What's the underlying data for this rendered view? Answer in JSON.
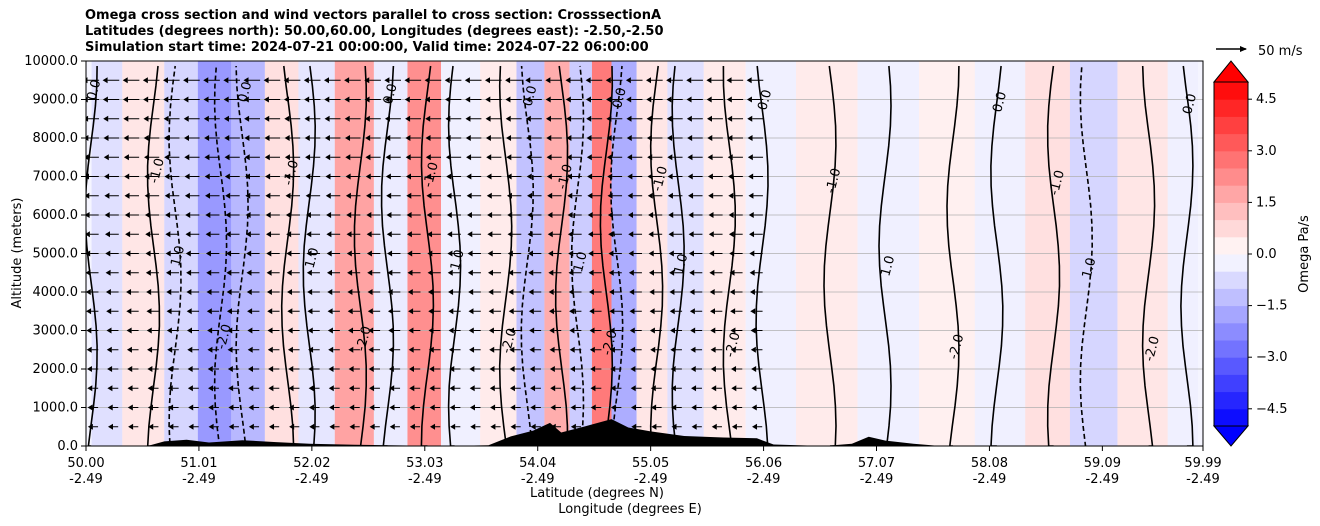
{
  "chart_data": {
    "type": "heatmap",
    "title_lines": [
      "Omega cross section and wind vectors parallel to cross section: CrosssectionA",
      "Latitudes (degrees north): 50.00,60.00, Longitudes (degrees east): -2.50,-2.50",
      "Simulation start time: 2024-07-21 00:00:00, Valid time: 2024-07-22 06:00:00"
    ],
    "xlabel_lat": "Latitude (degrees N)",
    "xlabel_lon": "Longitude (degrees E)",
    "ylabel": "Altitude (meters)",
    "x_ticks": [
      {
        "lat": "50.00",
        "lon": "-2.49",
        "value": 50.0
      },
      {
        "lat": "51.01",
        "lon": "-2.49",
        "value": 51.01
      },
      {
        "lat": "52.02",
        "lon": "-2.49",
        "value": 52.02
      },
      {
        "lat": "53.03",
        "lon": "-2.49",
        "value": 53.03
      },
      {
        "lat": "54.04",
        "lon": "-2.49",
        "value": 54.04
      },
      {
        "lat": "55.05",
        "lon": "-2.49",
        "value": 55.05
      },
      {
        "lat": "56.06",
        "lon": "-2.49",
        "value": 56.06
      },
      {
        "lat": "57.07",
        "lon": "-2.49",
        "value": 57.07
      },
      {
        "lat": "58.08",
        "lon": "-2.49",
        "value": 58.08
      },
      {
        "lat": "59.09",
        "lon": "-2.49",
        "value": 59.09
      },
      {
        "lat": "59.99",
        "lon": "-2.49",
        "value": 59.99
      }
    ],
    "xlim": [
      50.0,
      59.99
    ],
    "y_ticks": [
      "0.0",
      "1000.0",
      "2000.0",
      "3000.0",
      "4000.0",
      "5000.0",
      "6000.0",
      "7000.0",
      "8000.0",
      "9000.0",
      "10000.0"
    ],
    "ylim": [
      0,
      10000
    ],
    "grid": "horizontal",
    "colorbar": {
      "label": "Omega Pa/s",
      "ticks": [
        "4.5",
        "3.0",
        "1.5",
        "0.0",
        "−1.5",
        "−3.0",
        "−4.5"
      ],
      "tick_values": [
        4.5,
        3.0,
        1.5,
        0.0,
        -1.5,
        -3.0,
        -4.5
      ],
      "range": [
        -5.0,
        5.0
      ],
      "extend": "both",
      "levels": 20,
      "low_color": "#0000ff",
      "high_color": "#ff0000",
      "mid_color": "#ffffff"
    },
    "quiver_key": {
      "label": "50 m/s"
    },
    "contour_labels": [
      "0.0",
      "-1.0",
      "1.0",
      "-2.0"
    ],
    "omega_bands": [
      {
        "lat": 50.1,
        "omega": -0.6
      },
      {
        "lat": 50.55,
        "omega": 0.5
      },
      {
        "lat": 50.85,
        "omega": -0.8
      },
      {
        "lat": 51.15,
        "omega": -2.0
      },
      {
        "lat": 51.45,
        "omega": -1.4
      },
      {
        "lat": 51.75,
        "omega": 0.6
      },
      {
        "lat": 52.05,
        "omega": -0.5
      },
      {
        "lat": 52.4,
        "omega": 1.8
      },
      {
        "lat": 52.75,
        "omega": -0.4
      },
      {
        "lat": 53.0,
        "omega": 2.2
      },
      {
        "lat": 53.35,
        "omega": -0.3
      },
      {
        "lat": 53.7,
        "omega": 0.4
      },
      {
        "lat": 54.0,
        "omega": -1.2
      },
      {
        "lat": 54.2,
        "omega": 1.6
      },
      {
        "lat": 54.45,
        "omega": -1.0
      },
      {
        "lat": 54.6,
        "omega": 2.6
      },
      {
        "lat": 54.8,
        "omega": -1.6
      },
      {
        "lat": 55.05,
        "omega": 0.5
      },
      {
        "lat": 55.35,
        "omega": -0.6
      },
      {
        "lat": 55.7,
        "omega": 0.4
      },
      {
        "lat": 56.1,
        "omega": -0.3
      },
      {
        "lat": 56.6,
        "omega": 0.4
      },
      {
        "lat": 57.2,
        "omega": -0.3
      },
      {
        "lat": 57.7,
        "omega": 0.3
      },
      {
        "lat": 58.2,
        "omega": -0.3
      },
      {
        "lat": 58.6,
        "omega": 0.6
      },
      {
        "lat": 59.0,
        "omega": -0.8
      },
      {
        "lat": 59.45,
        "omega": 0.5
      },
      {
        "lat": 59.9,
        "omega": -0.3
      }
    ],
    "terrain": [
      {
        "lat": 50.0,
        "alt": 0
      },
      {
        "lat": 50.55,
        "alt": 0
      },
      {
        "lat": 50.7,
        "alt": 120
      },
      {
        "lat": 50.9,
        "alt": 160
      },
      {
        "lat": 51.1,
        "alt": 90
      },
      {
        "lat": 51.4,
        "alt": 150
      },
      {
        "lat": 51.7,
        "alt": 100
      },
      {
        "lat": 52.0,
        "alt": 60
      },
      {
        "lat": 52.4,
        "alt": 30
      },
      {
        "lat": 53.2,
        "alt": 0
      },
      {
        "lat": 53.6,
        "alt": 20
      },
      {
        "lat": 53.8,
        "alt": 250
      },
      {
        "lat": 54.0,
        "alt": 400
      },
      {
        "lat": 54.15,
        "alt": 600
      },
      {
        "lat": 54.25,
        "alt": 350
      },
      {
        "lat": 54.45,
        "alt": 500
      },
      {
        "lat": 54.7,
        "alt": 700
      },
      {
        "lat": 54.85,
        "alt": 480
      },
      {
        "lat": 55.05,
        "alt": 380
      },
      {
        "lat": 55.35,
        "alt": 260
      },
      {
        "lat": 55.7,
        "alt": 220
      },
      {
        "lat": 56.0,
        "alt": 200
      },
      {
        "lat": 56.15,
        "alt": 40
      },
      {
        "lat": 56.6,
        "alt": 0
      },
      {
        "lat": 56.85,
        "alt": 60
      },
      {
        "lat": 57.0,
        "alt": 240
      },
      {
        "lat": 57.15,
        "alt": 140
      },
      {
        "lat": 57.4,
        "alt": 60
      },
      {
        "lat": 57.6,
        "alt": 10
      },
      {
        "lat": 58.0,
        "alt": 0
      },
      {
        "lat": 59.99,
        "alt": 0
      }
    ]
  }
}
